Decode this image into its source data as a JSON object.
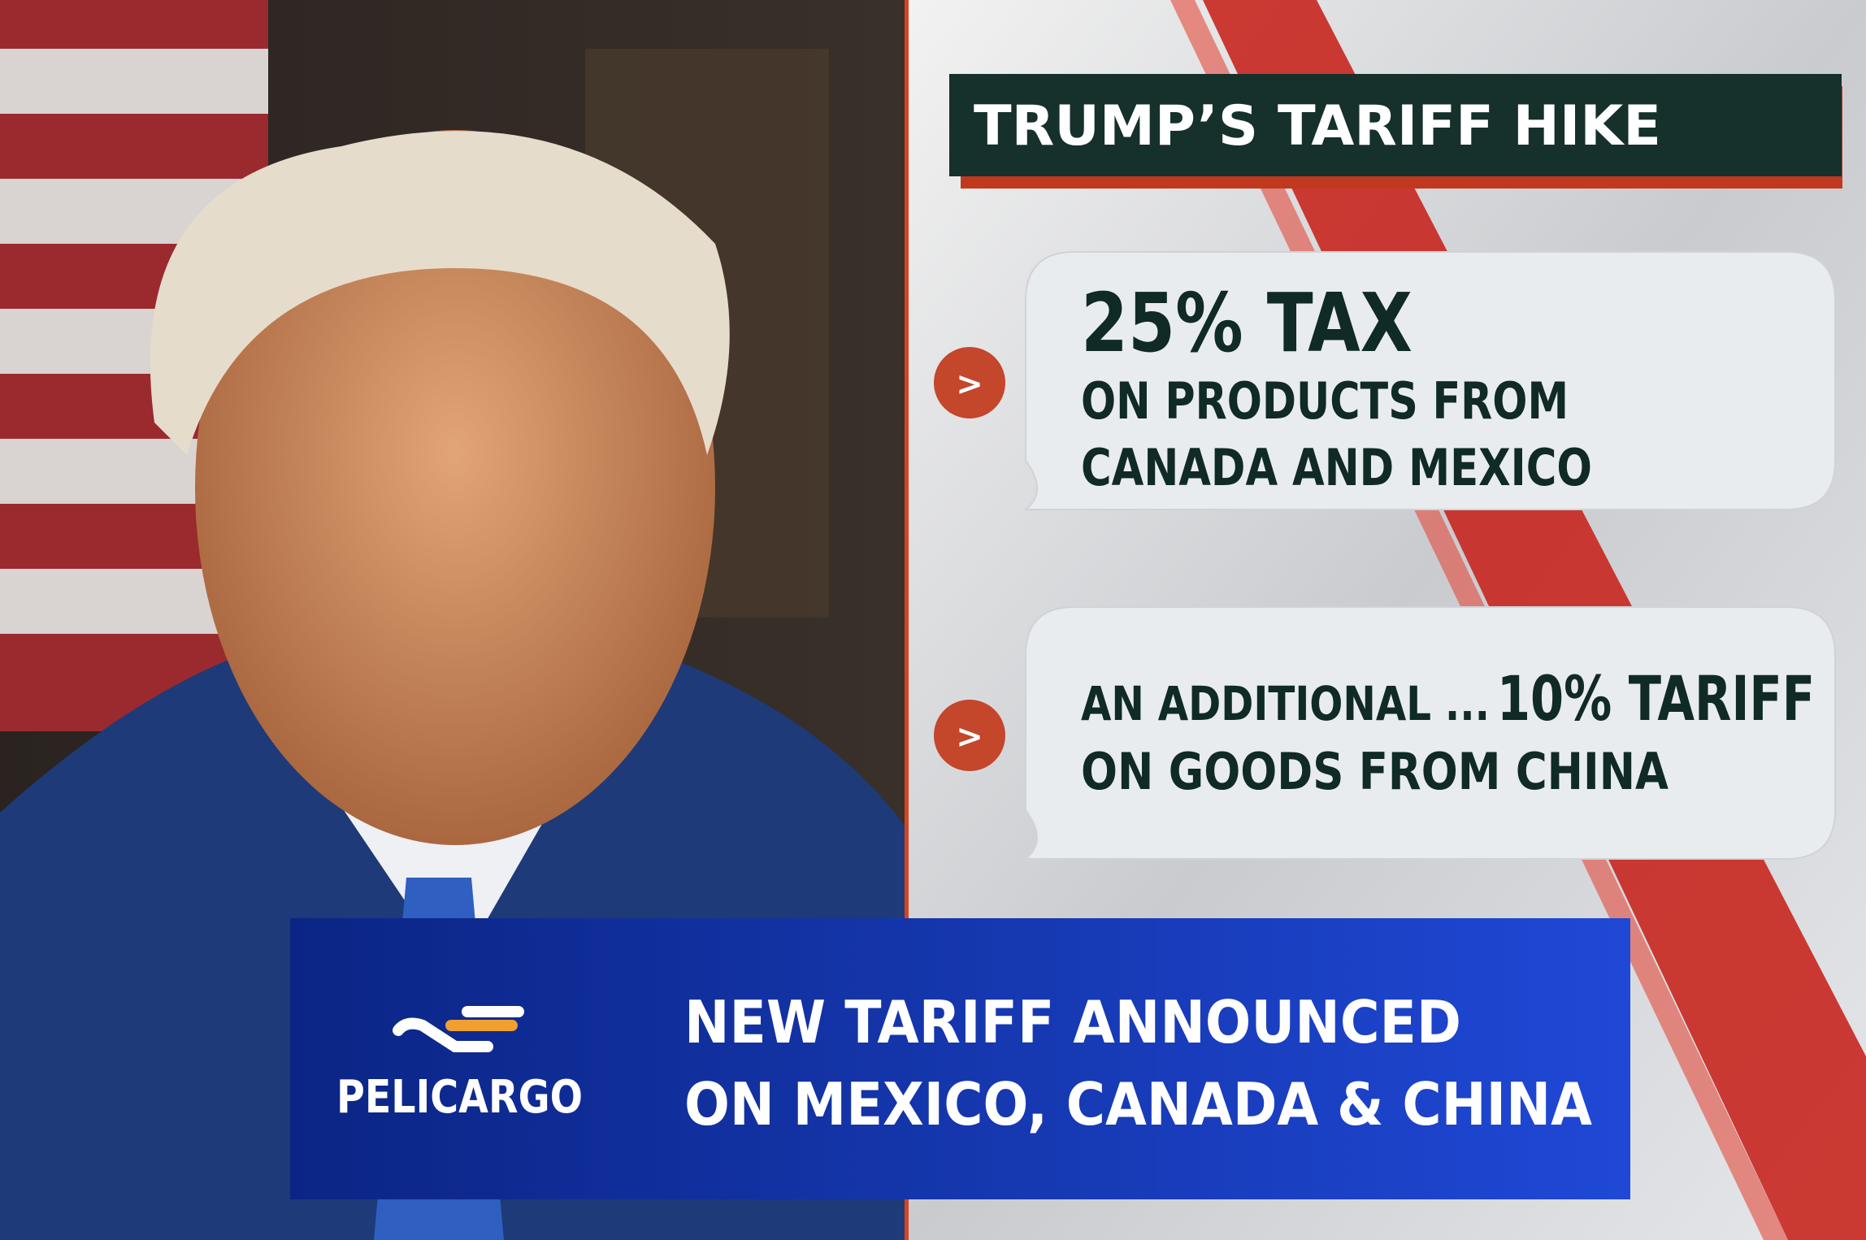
{
  "title": "TRUMP’S TARIFF HIKE",
  "points": [
    {
      "marker": ">",
      "headline": "25% TAX",
      "lines": [
        "ON PRODUCTS FROM",
        "CANADA AND MEXICO"
      ]
    },
    {
      "marker": ">",
      "lead": "AN ADDITIONAL ...",
      "headline": "10% TARIFF",
      "lines": [
        "ON GOODS FROM CHINA"
      ]
    }
  ],
  "banner": {
    "brand": "PELICARGO",
    "lines": [
      "NEW TARIFF ANNOUNCED",
      "ON MEXICO, CANADA & CHINA"
    ]
  }
}
